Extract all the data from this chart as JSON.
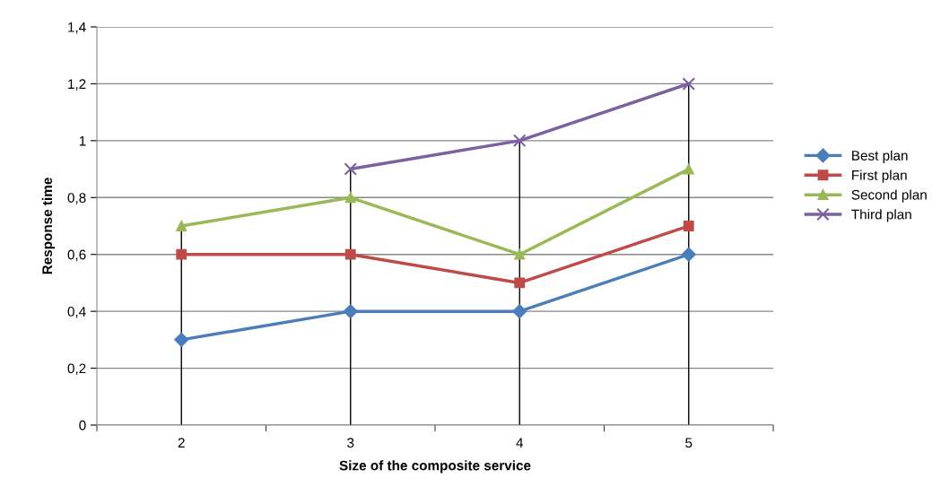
{
  "chart_data": {
    "type": "line",
    "xlabel": "Size of the composite service",
    "ylabel": "Response time",
    "categories": [
      "2",
      "3",
      "4",
      "5"
    ],
    "series": [
      {
        "name": "Best plan",
        "color": "#4a7ebb",
        "marker": "diamond",
        "values": [
          0.3,
          0.4,
          0.4,
          0.6
        ]
      },
      {
        "name": "First plan",
        "color": "#be4b48",
        "marker": "square",
        "values": [
          0.6,
          0.6,
          0.5,
          0.7
        ]
      },
      {
        "name": "Second plan",
        "color": "#98b954",
        "marker": "triangle",
        "values": [
          0.7,
          0.8,
          0.6,
          0.9
        ]
      },
      {
        "name": "Third plan",
        "color": "#7d60a0",
        "marker": "cross",
        "values": [
          null,
          0.9,
          1,
          1.2
        ]
      }
    ],
    "ylim": [
      0,
      1.4
    ],
    "yticks": [
      0,
      {
        "value": 0.2,
        "label": "0,2"
      },
      {
        "value": 0.4,
        "label": "0,4"
      },
      {
        "value": 0.6,
        "label": "0,6"
      },
      {
        "value": 0.8,
        "label": "0,8"
      },
      1,
      {
        "value": 1.2,
        "label": "1,2"
      },
      {
        "value": 1.4,
        "label": "1,4"
      }
    ],
    "ref_lines": [
      {
        "axis": "x",
        "value": "2",
        "color": "#000000"
      },
      {
        "axis": "x",
        "value": "3",
        "color": "#000000"
      },
      {
        "axis": "x",
        "value": "4",
        "color": "#000000"
      },
      {
        "axis": "x",
        "value": "5",
        "color": "#000000"
      }
    ],
    "grid": "y",
    "legend": "right",
    "line_style": "solid"
  }
}
